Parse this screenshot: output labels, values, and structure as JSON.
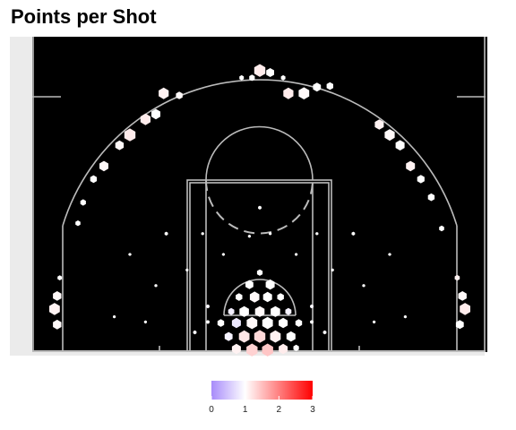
{
  "chart_data": {
    "type": "heatmap",
    "subtype": "hexbin-shot-chart",
    "title": "Points per Shot",
    "color_scale": {
      "min": 0,
      "max": 3,
      "ticks": [
        0,
        1,
        2,
        3
      ],
      "colors": {
        "low": "#a78bfa",
        "mid": "#ffffff",
        "high": "#ff0000"
      }
    },
    "court": {
      "background": "#000000",
      "line_color": "#bbbbbb",
      "surround": "#ebebeb"
    },
    "units": "ft",
    "hexbins": [
      {
        "x": -18.5,
        "y": 41.0,
        "v": 1.1,
        "s": 0.9
      },
      {
        "x": -15.5,
        "y": 40.6,
        "v": 1.05,
        "s": 0.6
      },
      {
        "x": -3.5,
        "y": 44.0,
        "v": 1.0,
        "s": 0.4
      },
      {
        "x": -1.5,
        "y": 44.0,
        "v": 1.0,
        "s": 0.5
      },
      {
        "x": 0.0,
        "y": 45.4,
        "v": 1.15,
        "s": 1.0
      },
      {
        "x": 2.0,
        "y": 45.0,
        "v": 1.0,
        "s": 0.7
      },
      {
        "x": 4.5,
        "y": 44.0,
        "v": 1.0,
        "s": 0.4
      },
      {
        "x": 5.5,
        "y": 41.0,
        "v": 1.15,
        "s": 0.9
      },
      {
        "x": 8.5,
        "y": 41.0,
        "v": 1.05,
        "s": 0.95
      },
      {
        "x": 11.0,
        "y": 42.2,
        "v": 1.0,
        "s": 0.7
      },
      {
        "x": 13.5,
        "y": 42.4,
        "v": 1.0,
        "s": 0.6
      },
      {
        "x": -22.0,
        "y": 36.0,
        "v": 1.15,
        "s": 0.9
      },
      {
        "x": -20.0,
        "y": 37.0,
        "v": 1.0,
        "s": 0.8
      },
      {
        "x": -25.0,
        "y": 33.0,
        "v": 1.15,
        "s": 1.0
      },
      {
        "x": -27.0,
        "y": 31.0,
        "v": 1.05,
        "s": 0.75
      },
      {
        "x": 23.0,
        "y": 35.0,
        "v": 1.1,
        "s": 0.8
      },
      {
        "x": 25.0,
        "y": 33.0,
        "v": 1.05,
        "s": 0.9
      },
      {
        "x": 27.0,
        "y": 31.0,
        "v": 1.0,
        "s": 0.8
      },
      {
        "x": -30.0,
        "y": 27.0,
        "v": 1.05,
        "s": 0.8
      },
      {
        "x": -32.0,
        "y": 24.5,
        "v": 1.0,
        "s": 0.6
      },
      {
        "x": 29.0,
        "y": 27.0,
        "v": 1.1,
        "s": 0.8
      },
      {
        "x": 31.0,
        "y": 24.5,
        "v": 1.0,
        "s": 0.65
      },
      {
        "x": -34.0,
        "y": 20.0,
        "v": 1.0,
        "s": 0.5
      },
      {
        "x": 33.0,
        "y": 21.0,
        "v": 1.0,
        "s": 0.6
      },
      {
        "x": -35.0,
        "y": 16.0,
        "v": 1.0,
        "s": 0.45
      },
      {
        "x": 35.0,
        "y": 15.0,
        "v": 1.0,
        "s": 0.45
      },
      {
        "x": -39.0,
        "y": 2.0,
        "v": 1.05,
        "s": 0.75
      },
      {
        "x": -39.5,
        "y": -0.5,
        "v": 1.1,
        "s": 0.95
      },
      {
        "x": -39.0,
        "y": -3.5,
        "v": 1.05,
        "s": 0.75
      },
      {
        "x": -38.5,
        "y": 5.5,
        "v": 1.0,
        "s": 0.4
      },
      {
        "x": 38.0,
        "y": 5.5,
        "v": 1.1,
        "s": 0.45
      },
      {
        "x": 39.0,
        "y": 2.0,
        "v": 1.05,
        "s": 0.75
      },
      {
        "x": 39.5,
        "y": -0.5,
        "v": 1.15,
        "s": 0.95
      },
      {
        "x": 38.5,
        "y": -3.5,
        "v": 1.0,
        "s": 0.7
      },
      {
        "x": 0.0,
        "y": 19.0,
        "v": 1.0,
        "s": 0.3
      },
      {
        "x": -2.0,
        "y": 13.5,
        "v": 1.0,
        "s": 0.25
      },
      {
        "x": 2.0,
        "y": 14.0,
        "v": 1.0,
        "s": 0.25
      },
      {
        "x": -11.0,
        "y": 14.0,
        "v": 1.0,
        "s": 0.25
      },
      {
        "x": 11.0,
        "y": 14.0,
        "v": 1.0,
        "s": 0.25
      },
      {
        "x": -18.0,
        "y": 14.0,
        "v": 1.0,
        "s": 0.3
      },
      {
        "x": 18.0,
        "y": 14.0,
        "v": 1.0,
        "s": 0.3
      },
      {
        "x": -25.0,
        "y": 10.0,
        "v": 1.0,
        "s": 0.25
      },
      {
        "x": 25.0,
        "y": 10.0,
        "v": 1.0,
        "s": 0.25
      },
      {
        "x": -7.0,
        "y": 10.0,
        "v": 1.0,
        "s": 0.25
      },
      {
        "x": 7.0,
        "y": 10.0,
        "v": 1.0,
        "s": 0.25
      },
      {
        "x": -14.0,
        "y": 7.0,
        "v": 1.0,
        "s": 0.25
      },
      {
        "x": 14.0,
        "y": 7.0,
        "v": 1.0,
        "s": 0.25
      },
      {
        "x": -20.0,
        "y": 4.0,
        "v": 1.0,
        "s": 0.25
      },
      {
        "x": 20.0,
        "y": 4.0,
        "v": 1.0,
        "s": 0.25
      },
      {
        "x": -10.0,
        "y": 0.0,
        "v": 0.95,
        "s": 0.3
      },
      {
        "x": 10.0,
        "y": 0.0,
        "v": 0.95,
        "s": 0.3
      },
      {
        "x": 0.0,
        "y": 6.5,
        "v": 1.0,
        "s": 0.5
      },
      {
        "x": 2.0,
        "y": 4.2,
        "v": 1.0,
        "s": 0.8
      },
      {
        "x": -2.0,
        "y": 4.2,
        "v": 1.0,
        "s": 0.7
      },
      {
        "x": -1.0,
        "y": 1.8,
        "v": 1.05,
        "s": 0.85
      },
      {
        "x": 1.5,
        "y": 1.8,
        "v": 1.0,
        "s": 0.8
      },
      {
        "x": -4.0,
        "y": 1.8,
        "v": 1.0,
        "s": 0.6
      },
      {
        "x": 4.0,
        "y": 1.8,
        "v": 1.0,
        "s": 0.6
      },
      {
        "x": -5.5,
        "y": -1.0,
        "v": 0.85,
        "s": 0.55
      },
      {
        "x": -3.0,
        "y": -1.0,
        "v": 1.0,
        "s": 0.85
      },
      {
        "x": 0.0,
        "y": -1.0,
        "v": 1.05,
        "s": 0.85
      },
      {
        "x": 3.0,
        "y": -1.0,
        "v": 1.0,
        "s": 0.85
      },
      {
        "x": 5.5,
        "y": -1.0,
        "v": 0.9,
        "s": 0.55
      },
      {
        "x": -7.5,
        "y": -3.2,
        "v": 1.0,
        "s": 0.6
      },
      {
        "x": -4.5,
        "y": -3.2,
        "v": 0.8,
        "s": 0.8
      },
      {
        "x": -1.5,
        "y": -3.2,
        "v": 1.05,
        "s": 0.95
      },
      {
        "x": 1.5,
        "y": -3.2,
        "v": 1.0,
        "s": 0.95
      },
      {
        "x": 4.5,
        "y": -3.2,
        "v": 1.0,
        "s": 0.8
      },
      {
        "x": 7.5,
        "y": -3.2,
        "v": 1.0,
        "s": 0.6
      },
      {
        "x": -6.0,
        "y": -5.8,
        "v": 0.9,
        "s": 0.7
      },
      {
        "x": -3.0,
        "y": -5.8,
        "v": 1.2,
        "s": 0.95
      },
      {
        "x": 0.0,
        "y": -5.8,
        "v": 1.3,
        "s": 1.0
      },
      {
        "x": 3.0,
        "y": -5.8,
        "v": 1.1,
        "s": 0.95
      },
      {
        "x": 6.0,
        "y": -5.8,
        "v": 1.0,
        "s": 0.8
      },
      {
        "x": -4.5,
        "y": -8.2,
        "v": 1.1,
        "s": 0.8
      },
      {
        "x": -1.5,
        "y": -8.4,
        "v": 1.35,
        "s": 1.0
      },
      {
        "x": 1.5,
        "y": -8.4,
        "v": 1.45,
        "s": 1.0
      },
      {
        "x": 4.5,
        "y": -8.2,
        "v": 1.15,
        "s": 0.8
      },
      {
        "x": 7.0,
        "y": -8.0,
        "v": 1.0,
        "s": 0.5
      },
      {
        "x": -10.0,
        "y": -3.0,
        "v": 1.0,
        "s": 0.3
      },
      {
        "x": 10.0,
        "y": -3.0,
        "v": 1.0,
        "s": 0.3
      },
      {
        "x": -12.5,
        "y": -5.0,
        "v": 0.95,
        "s": 0.3
      },
      {
        "x": 12.5,
        "y": -5.0,
        "v": 0.95,
        "s": 0.3
      },
      {
        "x": -22.0,
        "y": -3.0,
        "v": 1.0,
        "s": 0.25
      },
      {
        "x": 22.0,
        "y": -3.0,
        "v": 1.0,
        "s": 0.25
      },
      {
        "x": -28.0,
        "y": -2.0,
        "v": 1.0,
        "s": 0.25
      },
      {
        "x": 28.0,
        "y": -2.0,
        "v": 1.0,
        "s": 0.25
      }
    ]
  }
}
